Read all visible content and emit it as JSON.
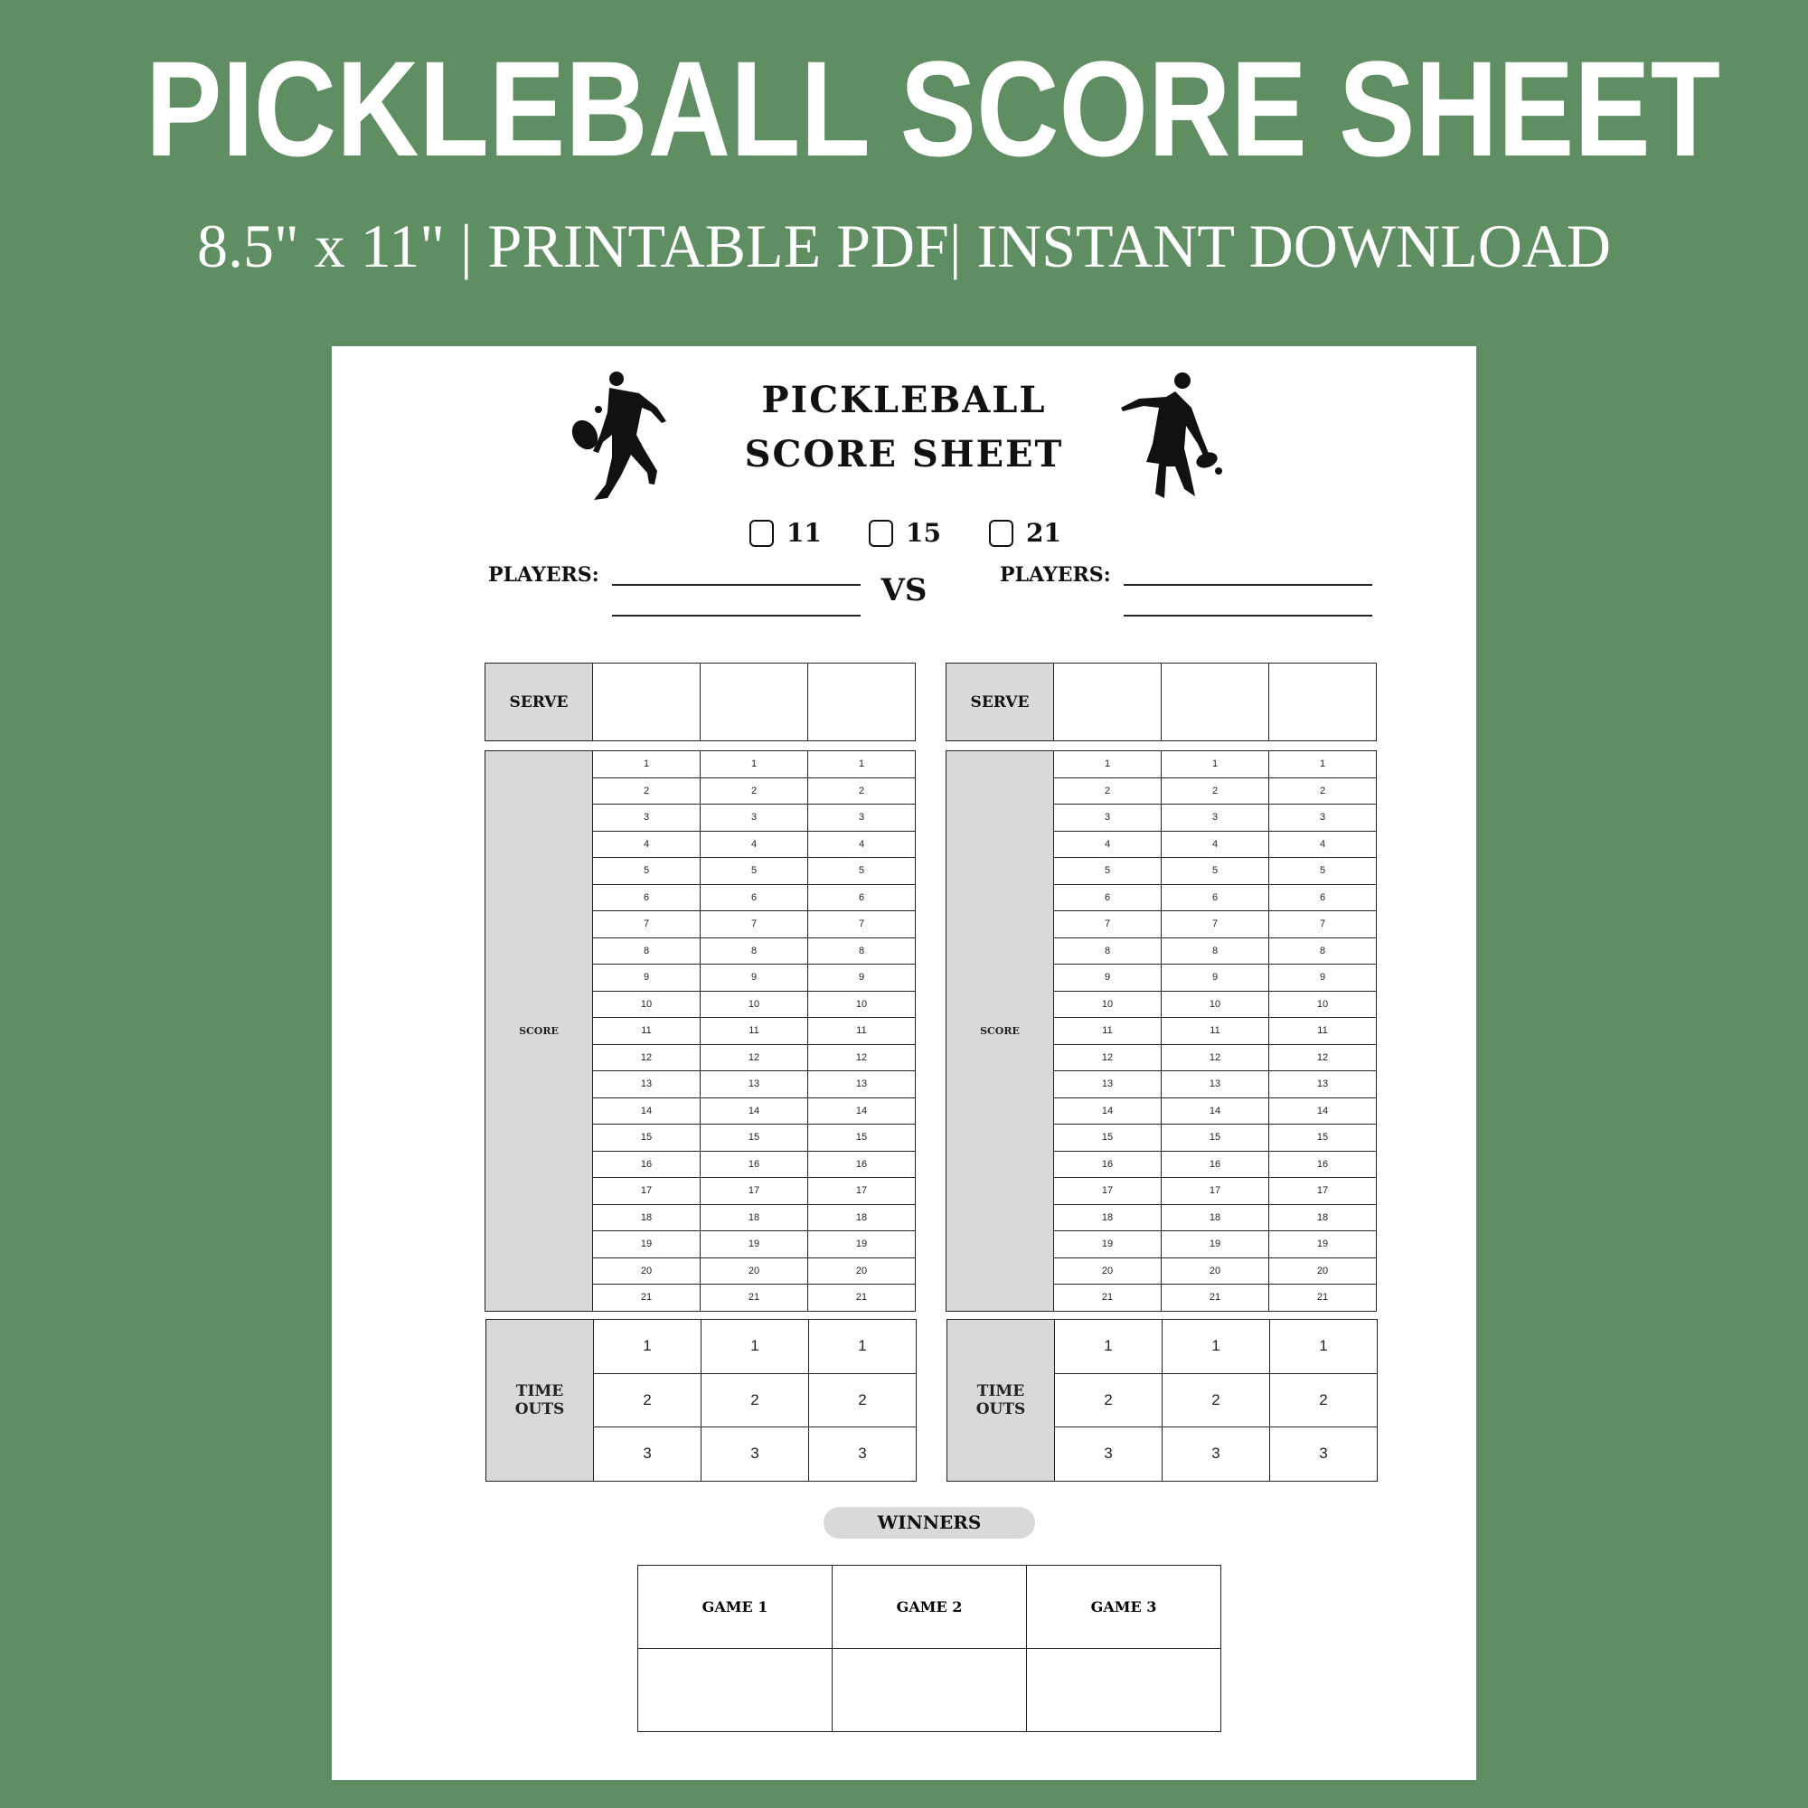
{
  "banner": {
    "title": "PICKLEBALL SCORE SHEET",
    "subtitle": "8.5\" x 11\" | PRINTABLE PDF| INSTANT DOWNLOAD"
  },
  "colors": {
    "background": "#5e8e62",
    "header_cell": "#d9d9d9"
  },
  "sheet": {
    "heading_line1": "PICKLEBALL",
    "heading_line2": "SCORE SHEET",
    "icons": [
      "player-forehand-silhouette-icon",
      "player-backhand-silhouette-icon"
    ],
    "game_points_options": [
      "11",
      "15",
      "21"
    ],
    "players_label": "PLAYERS:",
    "vs_label": "VS",
    "serve_label": "SERVE",
    "score_label": "SCORE",
    "timeouts_label_1": "TIME",
    "timeouts_label_2": "OUTS",
    "score_numbers": [
      "1",
      "2",
      "3",
      "4",
      "5",
      "6",
      "7",
      "8",
      "9",
      "10",
      "11",
      "12",
      "13",
      "14",
      "15",
      "16",
      "17",
      "18",
      "19",
      "20",
      "21"
    ],
    "timeout_numbers": [
      "1",
      "2",
      "3"
    ],
    "winners_label": "WINNERS",
    "games": [
      "GAME 1",
      "GAME 2",
      "GAME 3"
    ]
  }
}
